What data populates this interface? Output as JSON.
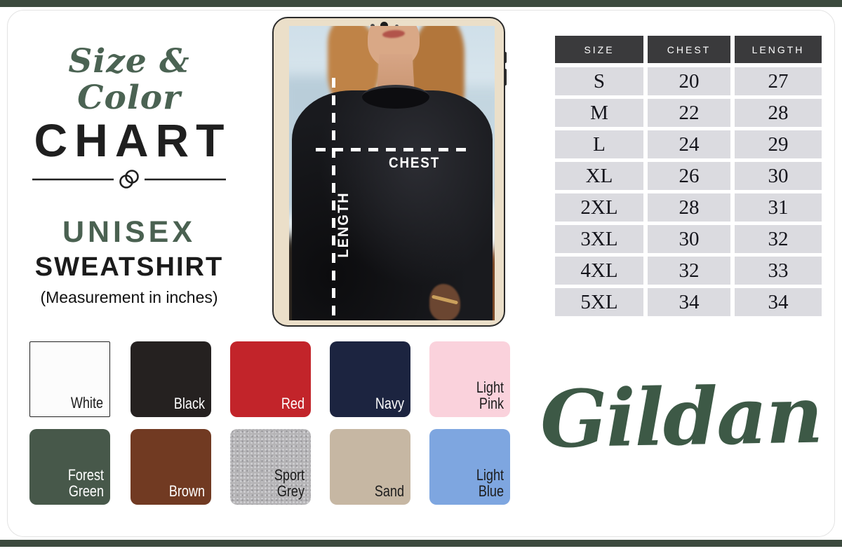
{
  "frame": {
    "bar_color": "#3c4a3e"
  },
  "header": {
    "script_title": "Size & Color",
    "main_title": "CHART",
    "product_line1": "UNISEX",
    "product_line2": "SWEATSHIRT",
    "note": "(Measurement in inches)"
  },
  "diagram": {
    "chest_label": "CHEST",
    "length_label": "LENGTH"
  },
  "chart_data": {
    "type": "table",
    "title": "Unisex Sweatshirt Size Chart (measurement in inches)",
    "columns": [
      "SIZE",
      "CHEST",
      "LENGTH"
    ],
    "rows": [
      [
        "S",
        20,
        27
      ],
      [
        "M",
        22,
        28
      ],
      [
        "L",
        24,
        29
      ],
      [
        "XL",
        26,
        30
      ],
      [
        "2XL",
        28,
        31
      ],
      [
        "3XL",
        30,
        32
      ],
      [
        "4XL",
        32,
        33
      ],
      [
        "5XL",
        34,
        34
      ]
    ],
    "header_bg": "#3a3a3c",
    "row_bg": "#dbdbe0"
  },
  "swatches": [
    {
      "name": "White",
      "hex": "#fcfcfc",
      "text": "#1c1c1c",
      "bordered": true
    },
    {
      "name": "Black",
      "hex": "#252120",
      "text": "#ffffff"
    },
    {
      "name": "Red",
      "hex": "#c2242a",
      "text": "#ffffff"
    },
    {
      "name": "Navy",
      "hex": "#1c2440",
      "text": "#ffffff"
    },
    {
      "name": "Light Pink",
      "hex": "#fad2dc",
      "text": "#1c1c1c"
    },
    {
      "name": "Forest Green",
      "hex": "#47584a",
      "text": "#ffffff"
    },
    {
      "name": "Brown",
      "hex": "#713a22",
      "text": "#ffffff"
    },
    {
      "name": "Sport Grey",
      "hex": "#b5b4b6",
      "text": "#1c1c1c",
      "heather": true
    },
    {
      "name": "Sand",
      "hex": "#c6b7a3",
      "text": "#1c1c1c"
    },
    {
      "name": "Light Blue",
      "hex": "#7ea6e0",
      "text": "#1c1c1c"
    }
  ],
  "brand": {
    "name": "Gildan",
    "color": "#3d5946"
  }
}
